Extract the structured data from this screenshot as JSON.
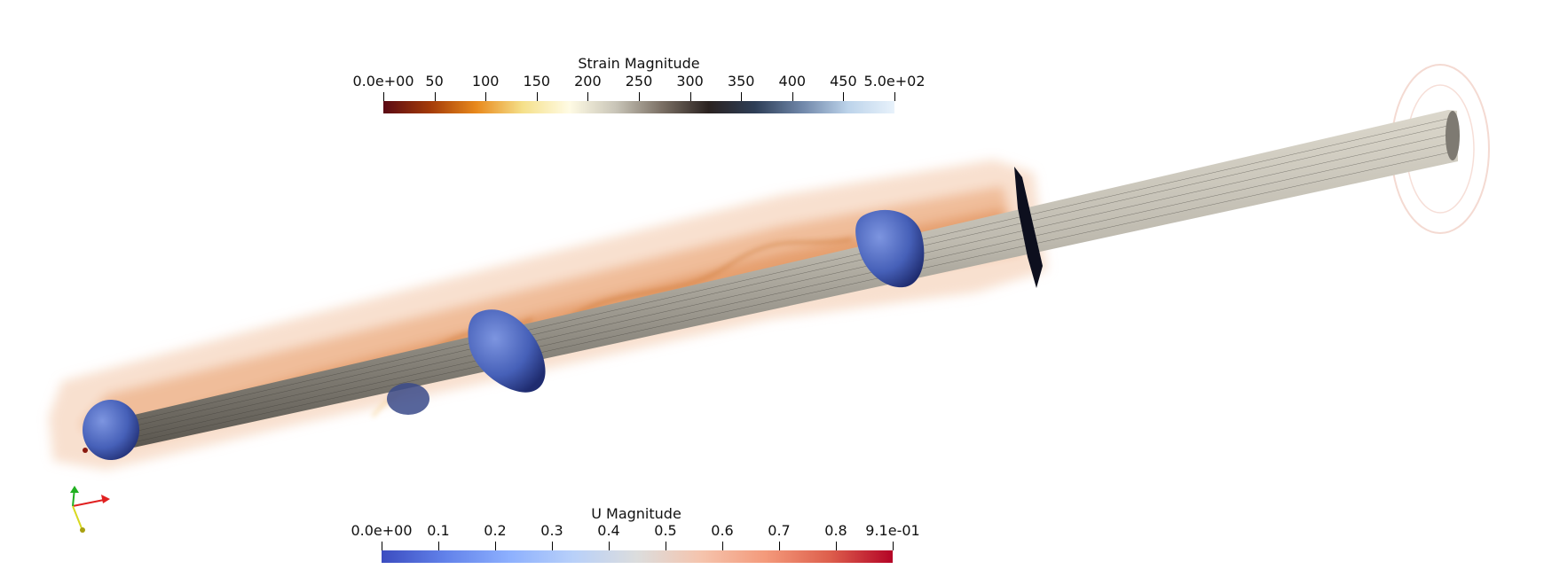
{
  "strain_bar": {
    "title": "Strain Magnitude",
    "ticks": [
      "0.0e+00",
      "50",
      "100",
      "150",
      "200",
      "250",
      "300",
      "350",
      "400",
      "450",
      "5.0e+02"
    ],
    "colormap": [
      "#5a0a14",
      "#a33a08",
      "#e8891c",
      "#f5e08a",
      "#fffbe4",
      "#c9c5b8",
      "#7a6f64",
      "#2a2220",
      "#2e3e57",
      "#6f86a8",
      "#bcd3ea",
      "#e8f2fb"
    ]
  },
  "u_bar": {
    "title": "U Magnitude",
    "ticks": [
      "0.0e+00",
      "0.1",
      "0.2",
      "0.3",
      "0.4",
      "0.5",
      "0.6",
      "0.7",
      "0.8",
      "9.1e-01"
    ],
    "colormap": [
      "#3b4cc0",
      "#6282ea",
      "#8db0fe",
      "#b8d0f9",
      "#dcdddd",
      "#f5c4ad",
      "#f49a7b",
      "#de604d",
      "#b40426"
    ]
  },
  "scene": {
    "cylinder_color": "#9a968c",
    "plume_color": "#e0864a",
    "blob_color": "#4660b8"
  },
  "axes": {
    "x_color": "#e02020",
    "y_color": "#20b020",
    "z_color": "#d8d820"
  }
}
